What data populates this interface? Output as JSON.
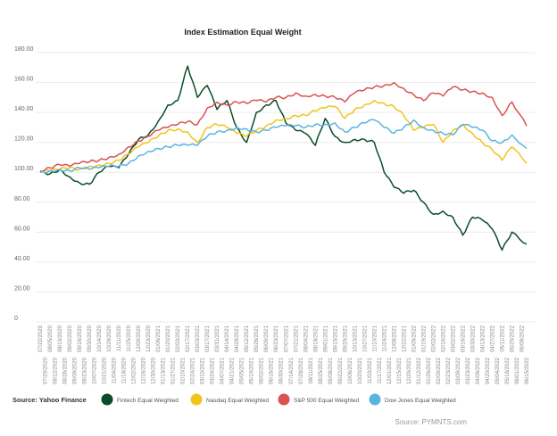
{
  "chart_data": {
    "type": "line",
    "title": "Index Estimation Equal Weight",
    "xlabel": "",
    "ylabel": "",
    "ylim": [
      0,
      180
    ],
    "yticks": [
      "0",
      "20.00",
      "40.00",
      "60.00",
      "80.00",
      "100.00",
      "120.00",
      "140.00",
      "160.00",
      "180.00"
    ],
    "ytick_values": [
      0,
      20,
      40,
      60,
      80,
      100,
      120,
      140,
      160,
      180
    ],
    "grid": true,
    "legend_placement": "bottom",
    "source_left": "Source: Yahoo Finance",
    "source_right": "Source: PYMNTS.com",
    "xticks": [
      "07/22/2020",
      "07/29/2020",
      "08/05/2020",
      "08/12/2020",
      "08/19/2020",
      "08/26/2020",
      "09/02/2020",
      "09/09/2020",
      "09/16/2020",
      "09/23/2020",
      "09/30/2020",
      "10/07/2020",
      "10/14/2020",
      "10/21/2020",
      "10/28/2020",
      "11/04/2020",
      "11/11/2020",
      "11/18/2020",
      "11/25/2020",
      "12/02/2020",
      "12/09/2020",
      "12/16/2020",
      "12/23/2020",
      "12/30/2020",
      "01/06/2021",
      "01/13/2021",
      "01/20/2021",
      "01/27/2021",
      "02/03/2021",
      "02/10/2021",
      "02/17/2021",
      "02/24/2021",
      "03/03/2021",
      "03/10/2021",
      "03/17/2021",
      "03/24/2021",
      "03/31/2021",
      "04/07/2021",
      "04/14/2021",
      "04/21/2021",
      "04/28/2021",
      "05/05/2021",
      "05/12/2021",
      "05/19/2021",
      "05/26/2021",
      "06/02/2021",
      "06/09/2021",
      "06/16/2021",
      "06/23/2021",
      "06/30/2021",
      "07/07/2021",
      "07/14/2021",
      "07/21/2021",
      "07/28/2021",
      "08/04/2021",
      "08/11/2021",
      "08/18/2021",
      "08/25/2021",
      "09/01/2021",
      "09/08/2021",
      "09/15/2021",
      "09/22/2021",
      "09/29/2021",
      "10/06/2021",
      "10/13/2021",
      "10/20/2021",
      "10/27/2021",
      "11/03/2021",
      "11/10/2021",
      "11/17/2021",
      "11/24/2021",
      "12/01/2021",
      "12/08/2021",
      "12/15/2021",
      "12/22/2021",
      "12/29/2021",
      "01/05/2022",
      "01/12/2022",
      "01/19/2022",
      "01/26/2022",
      "02/02/2022",
      "02/09/2022",
      "02/16/2022",
      "02/23/2022",
      "03/02/2022",
      "03/09/2022",
      "03/16/2022",
      "03/23/2022",
      "03/30/2022",
      "04/06/2022",
      "04/13/2022",
      "04/20/2022",
      "04/27/2022",
      "05/04/2022",
      "05/11/2022",
      "05/18/2022",
      "05/25/2022",
      "06/01/2022",
      "06/08/2022",
      "06/15/2022"
    ],
    "x": [
      "07/22/2020",
      "08/05/2020",
      "08/19/2020",
      "09/02/2020",
      "09/16/2020",
      "09/30/2020",
      "10/14/2020",
      "10/28/2020",
      "11/11/2020",
      "11/25/2020",
      "12/09/2020",
      "12/23/2020",
      "01/06/2021",
      "01/20/2021",
      "02/03/2021",
      "02/17/2021",
      "03/03/2021",
      "03/17/2021",
      "03/31/2021",
      "04/14/2021",
      "04/28/2021",
      "05/12/2021",
      "05/26/2021",
      "06/09/2021",
      "06/23/2021",
      "07/07/2021",
      "07/21/2021",
      "08/04/2021",
      "08/18/2021",
      "09/01/2021",
      "09/15/2021",
      "09/29/2021",
      "10/13/2021",
      "10/27/2021",
      "11/10/2021",
      "11/24/2021",
      "12/08/2021",
      "12/22/2021",
      "01/05/2022",
      "01/19/2022",
      "02/02/2022",
      "02/16/2022",
      "03/02/2022",
      "03/16/2022",
      "03/30/2022",
      "04/13/2022",
      "04/27/2022",
      "05/11/2022",
      "05/25/2022",
      "06/15/2022"
    ],
    "series": [
      {
        "name": "Fintech Equal Weighted",
        "color": "#0b4d2a",
        "values": [
          100,
          99,
          102,
          97,
          93,
          92,
          100,
          104,
          103,
          112,
          122,
          125,
          134,
          145,
          148,
          171,
          150,
          158,
          142,
          148,
          130,
          120,
          140,
          145,
          148,
          133,
          128,
          126,
          118,
          136,
          124,
          120,
          122,
          122,
          120,
          100,
          90,
          86,
          88,
          80,
          72,
          74,
          70,
          58,
          70,
          68,
          62,
          48,
          60,
          52
        ]
      },
      {
        "name": "Nasdaq Equal Weighted",
        "color": "#f2c41c",
        "values": [
          100,
          101,
          102,
          103,
          102,
          104,
          105,
          106,
          108,
          112,
          117,
          120,
          124,
          128,
          129,
          127,
          120,
          130,
          132,
          130,
          126,
          124,
          128,
          131,
          135,
          136,
          138,
          138,
          141,
          143,
          144,
          136,
          142,
          145,
          148,
          146,
          144,
          138,
          128,
          130,
          132,
          120,
          128,
          132,
          126,
          120,
          115,
          108,
          117,
          106
        ]
      },
      {
        "name": "S&P 500 Equal Weighted",
        "color": "#d9534f",
        "values": [
          101,
          103,
          105,
          104,
          106,
          107,
          108,
          110,
          112,
          117,
          121,
          124,
          128,
          130,
          132,
          134,
          132,
          143,
          147,
          145,
          147,
          146,
          148,
          147,
          150,
          150,
          153,
          151,
          152,
          151,
          150,
          147,
          153,
          155,
          157,
          158,
          160,
          156,
          152,
          148,
          153,
          151,
          157,
          155,
          154,
          153,
          150,
          138,
          147,
          131
        ]
      },
      {
        "name": "Dow Jones Equal Weighted",
        "color": "#5ab4e0",
        "values": [
          100,
          101,
          102,
          101,
          103,
          102,
          103,
          104,
          104,
          106,
          111,
          114,
          116,
          117,
          118,
          118,
          118,
          124,
          127,
          128,
          130,
          129,
          127,
          128,
          130,
          131,
          131,
          130,
          132,
          132,
          133,
          127,
          130,
          133,
          135,
          130,
          126,
          130,
          135,
          130,
          128,
          126,
          125,
          132,
          130,
          128,
          121,
          120,
          125,
          116
        ]
      }
    ]
  }
}
